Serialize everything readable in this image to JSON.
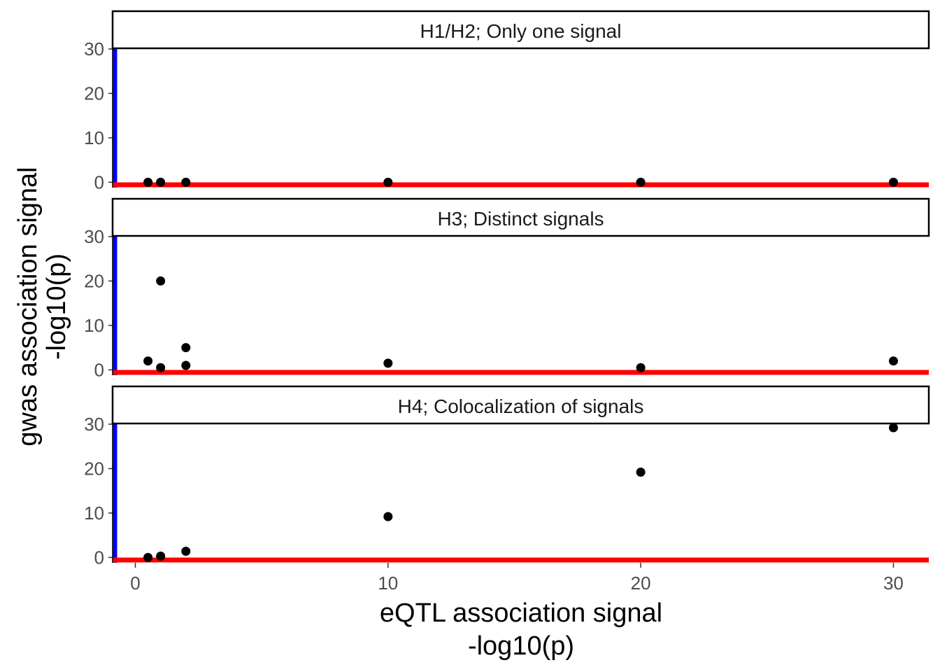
{
  "chart_data": {
    "type": "scatter",
    "xlabel_lines": [
      "eQTL association signal",
      "-log10(p)"
    ],
    "ylabel_lines": [
      "gwas association signal",
      "-log10(p)"
    ],
    "xlim": [
      -0.9,
      31.4
    ],
    "ylim": [
      -1.2,
      38.5
    ],
    "x_ticks": [
      0,
      10,
      20,
      30
    ],
    "y_ticks": [
      0,
      10,
      20,
      30
    ],
    "x_tick_labels": [
      "0",
      "10",
      "20",
      "30"
    ],
    "y_tick_labels": [
      "0",
      "10",
      "20",
      "30"
    ],
    "x_axis_line_color": "#ff0000",
    "y_axis_line_color": "#0000ff",
    "point_color": "#000000",
    "panels": [
      {
        "title": "H1/H2; Only one signal",
        "points": [
          {
            "x": 0.5,
            "y": 0
          },
          {
            "x": 1,
            "y": 0
          },
          {
            "x": 2,
            "y": 0
          },
          {
            "x": 10,
            "y": 0
          },
          {
            "x": 20,
            "y": 0
          },
          {
            "x": 30,
            "y": 0
          }
        ]
      },
      {
        "title": "H3; Distinct signals",
        "points": [
          {
            "x": 0.5,
            "y": 2
          },
          {
            "x": 1,
            "y": 0.5
          },
          {
            "x": 1,
            "y": 20
          },
          {
            "x": 2,
            "y": 1
          },
          {
            "x": 2,
            "y": 5
          },
          {
            "x": 10,
            "y": 1.5
          },
          {
            "x": 20,
            "y": 0.5
          },
          {
            "x": 30,
            "y": 2
          }
        ]
      },
      {
        "title": "H4; Colocalization of signals",
        "points": [
          {
            "x": 0.5,
            "y": 0
          },
          {
            "x": 1,
            "y": 0.3
          },
          {
            "x": 2,
            "y": 1.4
          },
          {
            "x": 10,
            "y": 9.2
          },
          {
            "x": 20,
            "y": 19.2
          },
          {
            "x": 30,
            "y": 29.2
          }
        ]
      }
    ]
  }
}
